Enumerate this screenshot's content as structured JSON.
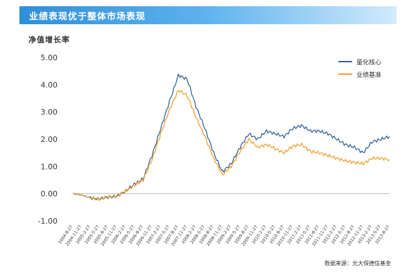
{
  "header": {
    "title": "业绩表现优于整体市场表现"
  },
  "source_note": "数据来源：光大保德信基金",
  "colors": {
    "series_main": "#336699",
    "series_benchmark": "#f0a030",
    "banner": "#3d9be3"
  },
  "chart_data": {
    "type": "line",
    "title": "",
    "ylabel": "净值增长率",
    "xlabel": "",
    "ylim": [
      -1.0,
      5.0
    ],
    "yticks": [
      "-1.00",
      "0.00",
      "1.00",
      "2.00",
      "3.00",
      "4.00",
      "5.00"
    ],
    "yticks_values": [
      -1,
      0,
      1,
      2,
      3,
      4,
      5
    ],
    "grid": false,
    "legend": "top-right",
    "x": [
      "2004-8-27",
      "2004-11-27",
      "2005-2-27",
      "2005-5-27",
      "2005-8-27",
      "2005-11-27",
      "2006-2-27",
      "2006-5-27",
      "2006-8-27",
      "2006-11-27",
      "2007-2-27",
      "2007-5-27",
      "2007-8-27",
      "2007-11-27",
      "2008-2-27",
      "2008-5-27",
      "2008-8-27",
      "2008-11-27",
      "2009-2-27",
      "2009-5-27",
      "2009-8-27",
      "2009-11-27",
      "2010-2-27",
      "2010-5-27",
      "2010-8-27",
      "2010-11-27",
      "2011-2-27",
      "2011-5-27",
      "2011-8-27",
      "2011-11-27",
      "2012-2-27",
      "2012-5-27",
      "2012-8-27",
      "2012-11-27",
      "2013-2-27",
      "2013-5-27",
      "2013-8-27"
    ],
    "series": [
      {
        "name": "量化核心",
        "color": "#336699",
        "values": [
          0.0,
          -0.05,
          -0.15,
          -0.2,
          -0.12,
          -0.1,
          0.1,
          0.35,
          0.55,
          1.4,
          2.4,
          3.4,
          4.35,
          4.2,
          3.2,
          2.4,
          1.5,
          0.8,
          1.1,
          1.7,
          2.2,
          2.0,
          2.3,
          2.2,
          2.1,
          2.4,
          2.5,
          2.3,
          2.3,
          2.2,
          2.0,
          1.8,
          1.7,
          1.5,
          1.9,
          2.0,
          2.1
        ]
      },
      {
        "name": "业绩基准",
        "color": "#f0a030",
        "values": [
          0.0,
          -0.05,
          -0.15,
          -0.2,
          -0.12,
          -0.1,
          0.1,
          0.3,
          0.5,
          1.25,
          2.2,
          3.1,
          3.8,
          3.6,
          2.8,
          2.1,
          1.3,
          0.7,
          1.0,
          1.55,
          2.0,
          1.7,
          1.8,
          1.65,
          1.5,
          1.75,
          1.8,
          1.55,
          1.5,
          1.4,
          1.3,
          1.2,
          1.15,
          1.1,
          1.3,
          1.3,
          1.25
        ]
      }
    ]
  }
}
